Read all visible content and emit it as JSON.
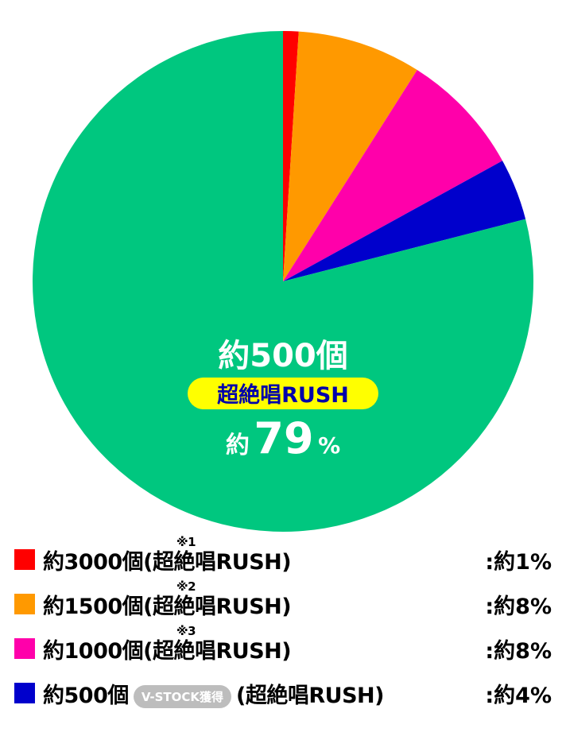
{
  "chart_data": {
    "type": "pie",
    "slices": [
      {
        "label": "約3000個(超絶唱RUSH)",
        "note": "※1",
        "value": 1,
        "value_label": ":約1%",
        "color": "#ff0000"
      },
      {
        "label": "約1500個(超絶唱RUSH)",
        "note": "※2",
        "value": 8,
        "value_label": ":約8%",
        "color": "#ff9900"
      },
      {
        "label": "約1000個(超絶唱RUSH)",
        "note": "※3",
        "value": 8,
        "value_label": ":約8%",
        "color": "#ff00aa"
      },
      {
        "label": "約500個",
        "badge": "V-STOCK獲得",
        "label_tail": "(超絶唱RUSH)",
        "value": 4,
        "value_label": ":約4%",
        "color": "#0000cc"
      },
      {
        "label": "約500個",
        "value": 79,
        "color": "#00c77f"
      }
    ],
    "center_label": {
      "line1": "約500個",
      "badge": "超絶唱RUSH",
      "prefix": "約",
      "number": "79",
      "suffix": "%"
    }
  }
}
